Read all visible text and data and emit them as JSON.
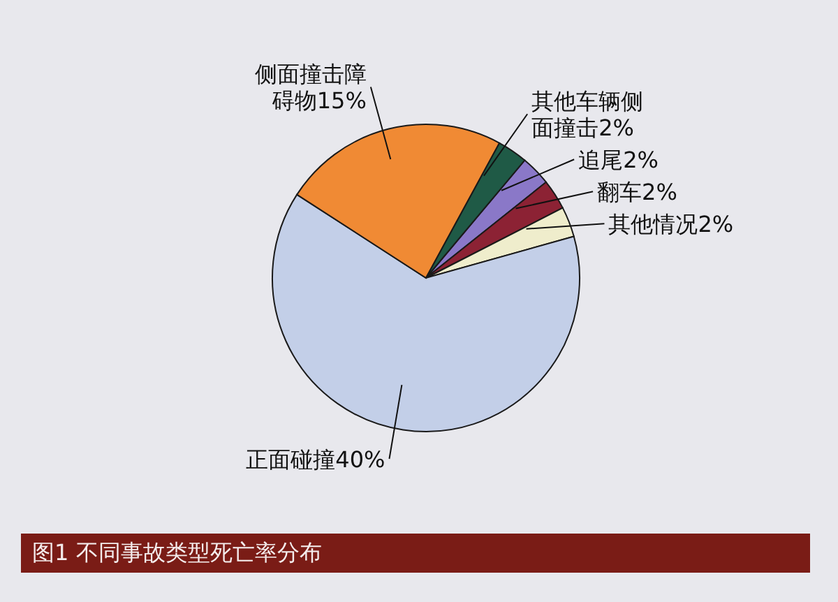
{
  "chart_data": {
    "type": "pie",
    "title": "图1 不同事故类型死亡率分布",
    "categories": [
      "追尾",
      "翻车",
      "其他情况",
      "正面碰撞",
      "侧面撞击障碍物",
      "其他车辆侧面撞击"
    ],
    "values": [
      2,
      2,
      2,
      40,
      15,
      2
    ],
    "value_labels": [
      "2%",
      "2%",
      "2%",
      "40%",
      "15%",
      "2%"
    ],
    "colors": [
      "#8a78c8",
      "#8c2234",
      "#efedcc",
      "#c3cfe8",
      "#f08a34",
      "#1f5a46"
    ]
  }
}
